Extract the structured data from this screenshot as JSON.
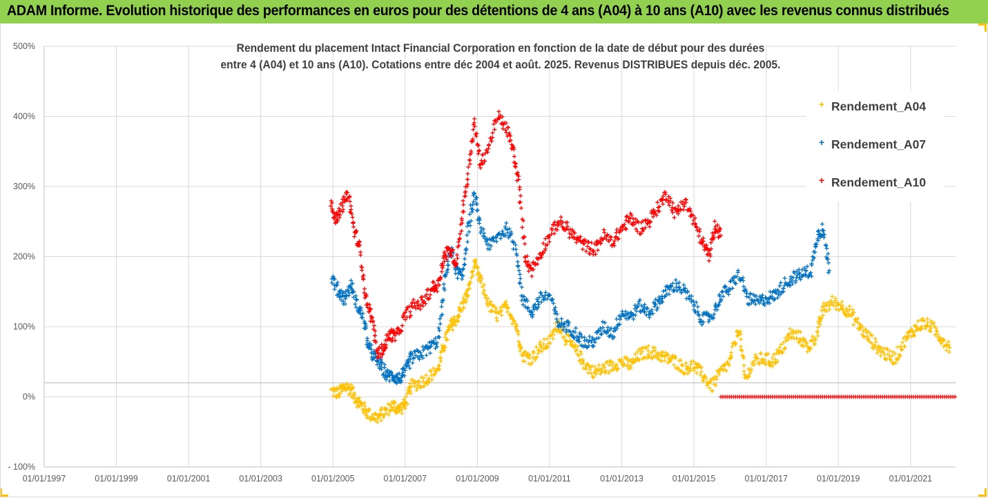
{
  "banner": {
    "text": "ADAM Informe. Evolution historique des performances en euros pour des détentions de 4 ans (A04) à 10 ans (A10) avec les revenus connus distribués"
  },
  "colors": {
    "banner_bg": "#92d050",
    "corner_accent": "#ffc000",
    "series_a04": "#ffc000",
    "series_a07": "#0070c0",
    "series_a10": "#ff0000",
    "gridline": "#d9d9d9",
    "reference_line": "#bfbfbf"
  },
  "chart_data": {
    "type": "scatter",
    "title_lines": [
      "Rendement du placement Intact Financial Corporation en fonction de la date de début pour des durées",
      "entre 4 (A04) et 10 ans (A10). Cotations entre déc 2004 et août. 2025. Revenus DISTRIBUES depuis déc. 2005."
    ],
    "marker": "plus",
    "legend_position": "right",
    "grid": {
      "vertical": true,
      "horizontal": true
    },
    "x_axis": {
      "type": "date",
      "range": [
        "1997-01-01",
        "2022-04-01"
      ],
      "tick_labels": [
        "01/01/1997",
        "01/01/1999",
        "01/01/2001",
        "01/01/2003",
        "01/01/2005",
        "01/01/2007",
        "01/01/2009",
        "01/01/2011",
        "01/01/2013",
        "01/01/2015",
        "01/01/2017",
        "01/01/2019",
        "01/01/2021"
      ]
    },
    "y_axis": {
      "unit": "%",
      "range": [
        -100,
        500
      ],
      "tick_labels": [
        "500%",
        "400%",
        "300%",
        "200%",
        "100%",
        "0%",
        "- 100%"
      ],
      "tick_values": [
        500,
        400,
        300,
        200,
        100,
        0,
        -100
      ],
      "reference_line": 20
    },
    "series": [
      {
        "name": "Rendement_A04",
        "color": "#ffc000",
        "points": [
          [
            "2004-12-15",
            8
          ],
          [
            "2005-03-01",
            5
          ],
          [
            "2005-05-01",
            15
          ],
          [
            "2005-07-01",
            10
          ],
          [
            "2005-09-01",
            -5
          ],
          [
            "2005-11-01",
            -15
          ],
          [
            "2006-01-01",
            -25
          ],
          [
            "2006-04-01",
            -30
          ],
          [
            "2006-06-01",
            -22
          ],
          [
            "2006-09-01",
            -12
          ],
          [
            "2006-11-01",
            -18
          ],
          [
            "2007-01-01",
            -10
          ],
          [
            "2007-03-01",
            15
          ],
          [
            "2007-06-01",
            20
          ],
          [
            "2007-09-01",
            28
          ],
          [
            "2007-12-01",
            40
          ],
          [
            "2008-02-01",
            75
          ],
          [
            "2008-04-01",
            100
          ],
          [
            "2008-06-01",
            110
          ],
          [
            "2008-08-01",
            130
          ],
          [
            "2008-10-01",
            150
          ],
          [
            "2008-12-01",
            190
          ],
          [
            "2009-02-01",
            165
          ],
          [
            "2009-05-01",
            130
          ],
          [
            "2009-08-01",
            115
          ],
          [
            "2009-11-01",
            130
          ],
          [
            "2010-02-01",
            100
          ],
          [
            "2010-04-01",
            60
          ],
          [
            "2010-07-01",
            55
          ],
          [
            "2010-10-01",
            70
          ],
          [
            "2011-01-01",
            78
          ],
          [
            "2011-04-01",
            105
          ],
          [
            "2011-07-01",
            80
          ],
          [
            "2011-10-01",
            65
          ],
          [
            "2012-01-01",
            45
          ],
          [
            "2012-04-01",
            35
          ],
          [
            "2012-07-01",
            40
          ],
          [
            "2012-10-01",
            45
          ],
          [
            "2013-01-01",
            50
          ],
          [
            "2013-04-01",
            45
          ],
          [
            "2013-07-01",
            60
          ],
          [
            "2013-10-01",
            65
          ],
          [
            "2014-01-01",
            60
          ],
          [
            "2014-04-01",
            55
          ],
          [
            "2014-07-01",
            50
          ],
          [
            "2014-10-01",
            40
          ],
          [
            "2015-01-01",
            45
          ],
          [
            "2015-04-01",
            30
          ],
          [
            "2015-07-01",
            15
          ],
          [
            "2015-10-01",
            35
          ],
          [
            "2016-01-01",
            50
          ],
          [
            "2016-04-01",
            100
          ],
          [
            "2016-06-01",
            25
          ],
          [
            "2016-09-01",
            50
          ],
          [
            "2016-12-01",
            55
          ],
          [
            "2017-03-01",
            50
          ],
          [
            "2017-06-01",
            65
          ],
          [
            "2017-09-01",
            90
          ],
          [
            "2017-12-01",
            85
          ],
          [
            "2018-03-01",
            70
          ],
          [
            "2018-06-01",
            90
          ],
          [
            "2018-08-01",
            125
          ],
          [
            "2018-11-01",
            135
          ],
          [
            "2019-02-01",
            130
          ],
          [
            "2019-05-01",
            120
          ],
          [
            "2019-08-01",
            100
          ],
          [
            "2019-11-01",
            85
          ],
          [
            "2020-02-01",
            70
          ],
          [
            "2020-05-01",
            60
          ],
          [
            "2020-08-01",
            55
          ],
          [
            "2020-11-01",
            80
          ],
          [
            "2021-02-01",
            95
          ],
          [
            "2021-05-01",
            105
          ],
          [
            "2021-08-01",
            100
          ],
          [
            "2021-11-01",
            85
          ],
          [
            "2022-02-01",
            70
          ]
        ]
      },
      {
        "name": "Rendement_A07",
        "color": "#0070c0",
        "points": [
          [
            "2004-12-15",
            170
          ],
          [
            "2005-03-01",
            150
          ],
          [
            "2005-05-01",
            140
          ],
          [
            "2005-07-01",
            160
          ],
          [
            "2005-09-01",
            130
          ],
          [
            "2005-11-01",
            115
          ],
          [
            "2006-01-01",
            70
          ],
          [
            "2006-03-01",
            55
          ],
          [
            "2006-05-01",
            45
          ],
          [
            "2006-07-01",
            30
          ],
          [
            "2006-09-01",
            30
          ],
          [
            "2006-11-01",
            25
          ],
          [
            "2007-01-01",
            35
          ],
          [
            "2007-03-01",
            55
          ],
          [
            "2007-06-01",
            60
          ],
          [
            "2007-09-01",
            70
          ],
          [
            "2007-12-01",
            80
          ],
          [
            "2008-02-01",
            160
          ],
          [
            "2008-04-01",
            210
          ],
          [
            "2008-06-01",
            180
          ],
          [
            "2008-08-01",
            170
          ],
          [
            "2008-10-01",
            240
          ],
          [
            "2008-12-01",
            290
          ],
          [
            "2009-02-01",
            240
          ],
          [
            "2009-05-01",
            215
          ],
          [
            "2009-08-01",
            230
          ],
          [
            "2009-11-01",
            240
          ],
          [
            "2010-02-01",
            210
          ],
          [
            "2010-04-01",
            140
          ],
          [
            "2010-07-01",
            120
          ],
          [
            "2010-10-01",
            140
          ],
          [
            "2011-01-01",
            145
          ],
          [
            "2011-04-01",
            105
          ],
          [
            "2011-07-01",
            100
          ],
          [
            "2011-10-01",
            90
          ],
          [
            "2012-01-01",
            75
          ],
          [
            "2012-04-01",
            80
          ],
          [
            "2012-07-01",
            100
          ],
          [
            "2012-10-01",
            90
          ],
          [
            "2013-01-01",
            120
          ],
          [
            "2013-04-01",
            115
          ],
          [
            "2013-07-01",
            130
          ],
          [
            "2013-10-01",
            120
          ],
          [
            "2014-01-01",
            135
          ],
          [
            "2014-04-01",
            150
          ],
          [
            "2014-07-01",
            160
          ],
          [
            "2014-10-01",
            150
          ],
          [
            "2015-01-01",
            130
          ],
          [
            "2015-04-01",
            110
          ],
          [
            "2015-07-01",
            115
          ],
          [
            "2015-10-01",
            145
          ],
          [
            "2016-01-01",
            155
          ],
          [
            "2016-04-01",
            175
          ],
          [
            "2016-07-01",
            140
          ],
          [
            "2016-10-01",
            135
          ],
          [
            "2017-01-01",
            140
          ],
          [
            "2017-04-01",
            145
          ],
          [
            "2017-07-01",
            160
          ],
          [
            "2017-10-01",
            170
          ],
          [
            "2018-01-01",
            175
          ],
          [
            "2018-04-01",
            180
          ],
          [
            "2018-06-01",
            230
          ],
          [
            "2018-08-01",
            240
          ],
          [
            "2018-10-01",
            180
          ]
        ]
      },
      {
        "name": "Rendement_A10",
        "color": "#ff0000",
        "points": [
          [
            "2004-12-15",
            280
          ],
          [
            "2005-02-01",
            250
          ],
          [
            "2005-04-01",
            270
          ],
          [
            "2005-06-01",
            290
          ],
          [
            "2005-08-01",
            240
          ],
          [
            "2005-10-01",
            210
          ],
          [
            "2005-12-01",
            140
          ],
          [
            "2006-02-01",
            110
          ],
          [
            "2006-04-01",
            60
          ],
          [
            "2006-06-01",
            70
          ],
          [
            "2006-08-01",
            90
          ],
          [
            "2006-10-01",
            85
          ],
          [
            "2007-01-01",
            115
          ],
          [
            "2007-04-01",
            130
          ],
          [
            "2007-07-01",
            135
          ],
          [
            "2007-10-01",
            155
          ],
          [
            "2007-12-01",
            160
          ],
          [
            "2008-02-01",
            200
          ],
          [
            "2008-04-01",
            210
          ],
          [
            "2008-06-01",
            190
          ],
          [
            "2008-08-01",
            260
          ],
          [
            "2008-10-01",
            320
          ],
          [
            "2008-12-01",
            390
          ],
          [
            "2009-02-01",
            330
          ],
          [
            "2009-05-01",
            360
          ],
          [
            "2009-08-01",
            400
          ],
          [
            "2009-11-01",
            380
          ],
          [
            "2010-01-01",
            350
          ],
          [
            "2010-03-01",
            300
          ],
          [
            "2010-05-01",
            200
          ],
          [
            "2010-07-01",
            180
          ],
          [
            "2010-10-01",
            205
          ],
          [
            "2011-01-01",
            230
          ],
          [
            "2011-04-01",
            250
          ],
          [
            "2011-07-01",
            240
          ],
          [
            "2011-10-01",
            225
          ],
          [
            "2012-01-01",
            215
          ],
          [
            "2012-04-01",
            210
          ],
          [
            "2012-07-01",
            230
          ],
          [
            "2012-10-01",
            220
          ],
          [
            "2013-01-01",
            240
          ],
          [
            "2013-04-01",
            255
          ],
          [
            "2013-07-01",
            240
          ],
          [
            "2013-10-01",
            250
          ],
          [
            "2014-01-01",
            270
          ],
          [
            "2014-04-01",
            290
          ],
          [
            "2014-07-01",
            260
          ],
          [
            "2014-10-01",
            280
          ],
          [
            "2015-01-01",
            250
          ],
          [
            "2015-04-01",
            220
          ],
          [
            "2015-06-01",
            200
          ],
          [
            "2015-08-01",
            245
          ],
          [
            "2015-10-01",
            230
          ]
        ]
      }
    ],
    "zero_band": {
      "series": "Rendement_A10",
      "from": "2015-10-01",
      "to": "2022-04-01",
      "value": 0
    }
  }
}
